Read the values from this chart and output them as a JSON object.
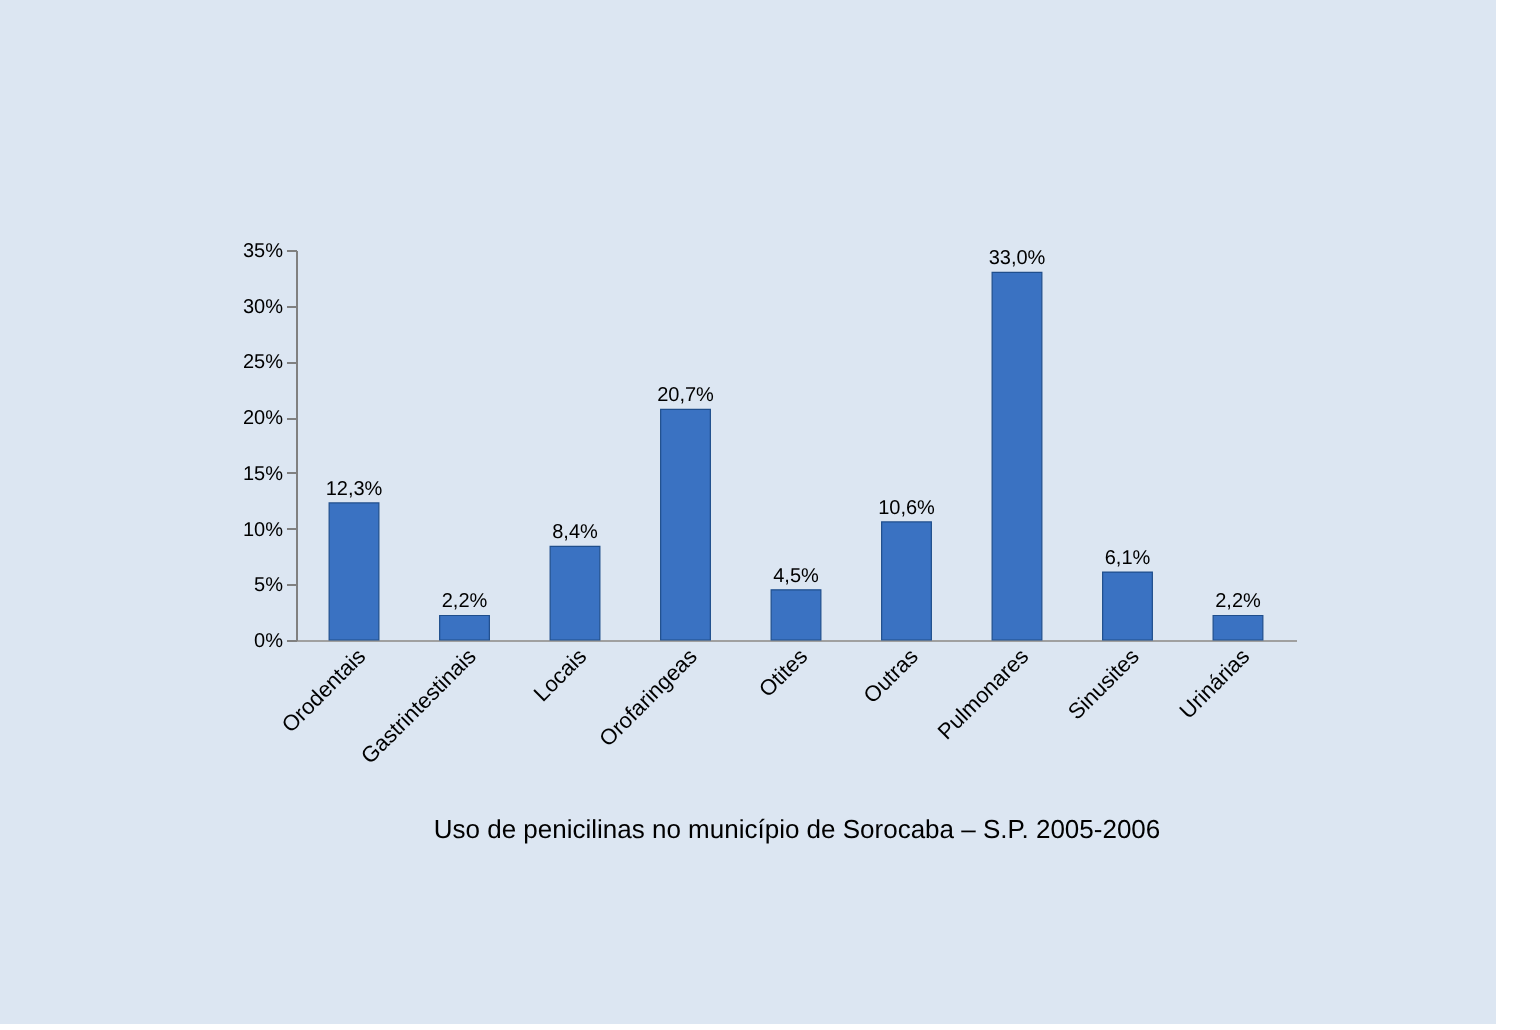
{
  "chart_data": {
    "type": "bar",
    "xlabel": "Uso de penicilinas no município de Sorocaba – S.P. 2005-2006",
    "categories": [
      "Orodentais",
      "Gastrintestinais",
      "Locais",
      "Orofaringeas",
      "Otites",
      "Outras",
      "Pulmonares",
      "Sinusites",
      "Urinárias"
    ],
    "values": [
      12.3,
      2.2,
      8.4,
      20.7,
      4.5,
      10.6,
      33.0,
      6.1,
      2.2
    ],
    "value_labels": [
      "12,3%",
      "2,2%",
      "8,4%",
      "20,7%",
      "4,5%",
      "10,6%",
      "33,0%",
      "6,1%",
      "2,2%"
    ],
    "color": "#3a72c2",
    "ylim": [
      0,
      35
    ],
    "yticks": [
      {
        "value": 0,
        "label": "0%"
      },
      {
        "value": 5,
        "label": "5%"
      },
      {
        "value": 10,
        "label": "10%"
      },
      {
        "value": 15,
        "label": "15%"
      },
      {
        "value": 20,
        "label": "20%"
      },
      {
        "value": 25,
        "label": "25%"
      },
      {
        "value": 30,
        "label": "30%"
      },
      {
        "value": 35,
        "label": "35%"
      }
    ],
    "grid": false
  }
}
